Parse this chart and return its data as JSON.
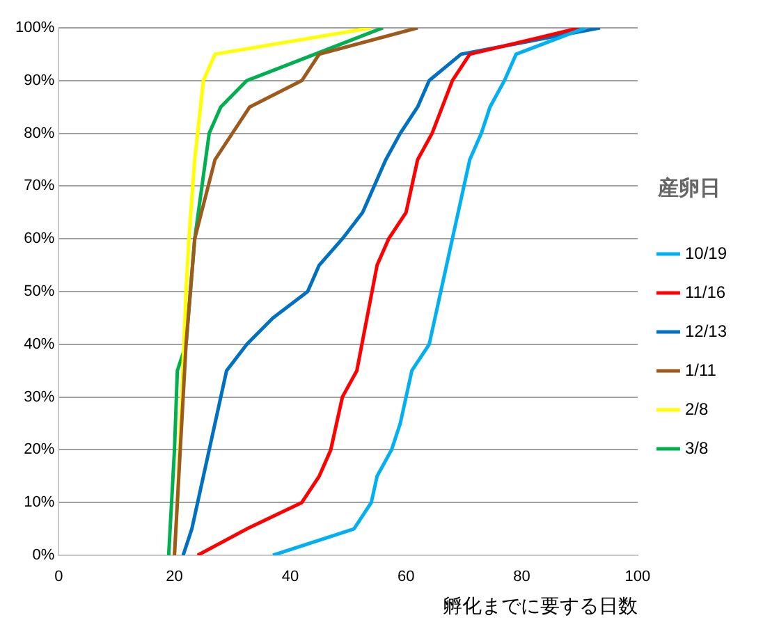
{
  "chart_data": {
    "type": "line",
    "xlabel": "孵化までに要する日数",
    "legend_title": "産卵日",
    "legend": "right",
    "grid": "y",
    "marker": "none",
    "line_style": "solid",
    "xlim": [
      0,
      100
    ],
    "xticks": [
      0,
      20,
      40,
      60,
      80,
      100
    ],
    "ylim": [
      0,
      100
    ],
    "yticks": [
      {
        "value": 0,
        "label": "0%"
      },
      {
        "value": 10,
        "label": "10%"
      },
      {
        "value": 20,
        "label": "20%"
      },
      {
        "value": 30,
        "label": "30%"
      },
      {
        "value": 40,
        "label": "40%"
      },
      {
        "value": 50,
        "label": "50%"
      },
      {
        "value": 60,
        "label": "60%"
      },
      {
        "value": 70,
        "label": "70%"
      },
      {
        "value": 80,
        "label": "80%"
      },
      {
        "value": 90,
        "label": "90%"
      },
      {
        "value": 100,
        "label": "100%"
      }
    ],
    "series": [
      {
        "name": "10/19",
        "color": "#00b0f0",
        "x": [
          37,
          51,
          54,
          55,
          57.5,
          59,
          61,
          64,
          71,
          73,
          74.5,
          77,
          79,
          91
        ],
        "values": [
          0,
          5,
          10,
          15,
          20,
          25,
          35,
          40,
          75,
          80,
          85,
          90,
          95,
          100
        ]
      },
      {
        "name": "11/16",
        "color": "#ff0000",
        "x": [
          24,
          32.5,
          42,
          45,
          47,
          49,
          51.5,
          55,
          57,
          60,
          62,
          64.5,
          68,
          71,
          90
        ],
        "values": [
          0,
          5,
          10,
          15,
          20,
          30,
          35,
          55,
          60,
          65,
          75,
          80,
          90,
          95,
          100
        ]
      },
      {
        "name": "12/13",
        "color": "#0070c0",
        "x": [
          21.5,
          23,
          29,
          32.5,
          37,
          43,
          45,
          49,
          52.5,
          56.5,
          59,
          62,
          64,
          69.5,
          93.5
        ],
        "values": [
          0,
          5,
          35,
          40,
          45,
          50,
          55,
          60,
          65,
          75,
          80,
          85,
          90,
          95,
          100
        ]
      },
      {
        "name": "1/11",
        "color": "#9c5b1c",
        "x": [
          20,
          21,
          22,
          23.5,
          27,
          33,
          42,
          45,
          62
        ],
        "values": [
          0,
          20,
          40,
          60,
          75,
          85,
          90,
          95,
          100
        ]
      },
      {
        "name": "2/8",
        "color": "#ffff00",
        "x": [
          20,
          20.5,
          22,
          22.5,
          23.5,
          25,
          27,
          54
        ],
        "values": [
          0,
          10,
          50,
          60,
          75,
          90,
          95,
          100
        ]
      },
      {
        "name": "3/8",
        "color": "#00b050",
        "x": [
          19,
          20,
          20.5,
          22,
          23.5,
          26,
          28,
          32.5,
          56
        ],
        "values": [
          0,
          20,
          35,
          40,
          60,
          80,
          85,
          90,
          100
        ]
      }
    ]
  }
}
